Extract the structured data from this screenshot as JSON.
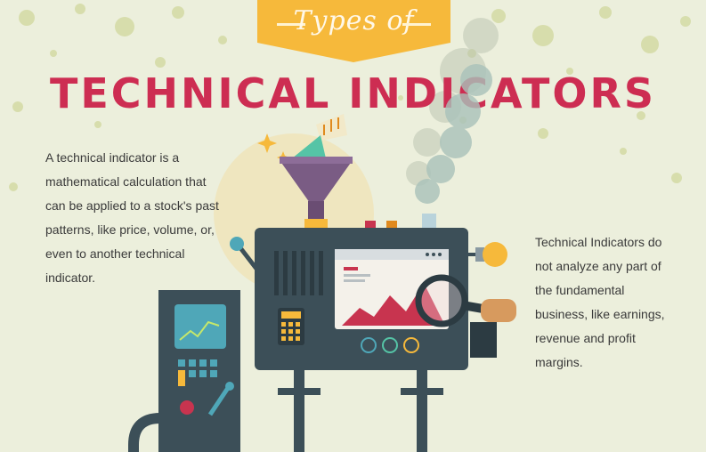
{
  "header": {
    "ribbon_text": "Types of",
    "title": "TECHNICAL INDICATORS"
  },
  "left_paragraph": {
    "lines": [
      "A technical indicator is a",
      "mathematical calculation that",
      "can be applied to a stock's past",
      "patterns, like price, volume, or,",
      "even to another technical",
      "indicator."
    ]
  },
  "right_paragraph": {
    "lines": [
      "Technical Indicators do",
      "not analyze any part of",
      "the fundamental",
      "business, like earnings,",
      "revenue and profit",
      "margins."
    ]
  },
  "colors": {
    "background": "#ecefdc",
    "ribbon": "#f6b93b",
    "title": "#cd2d52",
    "machine": "#3c4f58",
    "funnel": "#7a5c84",
    "screen_accent": "#c8344f"
  },
  "icons": [
    "funnel-icon",
    "lightbulb-icon",
    "magnifier-icon",
    "calculator-icon",
    "gauge-icon",
    "lever-icon"
  ]
}
